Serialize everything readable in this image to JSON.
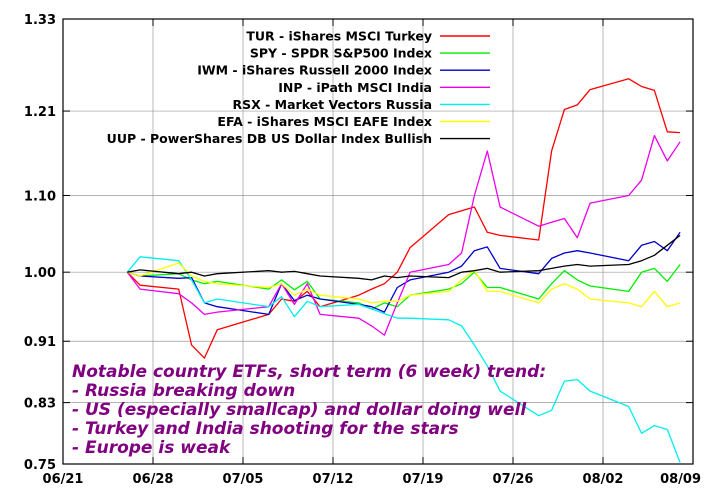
{
  "chart_data": {
    "type": "line",
    "x_dates": [
      "06/26",
      "06/27",
      "06/30",
      "07/01",
      "07/02",
      "07/03",
      "07/07",
      "07/08",
      "07/09",
      "07/10",
      "07/11",
      "07/14",
      "07/15",
      "07/16",
      "07/17",
      "07/18",
      "07/21",
      "07/22",
      "07/23",
      "07/24",
      "07/25",
      "07/28",
      "07/29",
      "07/30",
      "07/31",
      "08/01",
      "08/04",
      "08/05",
      "08/06",
      "08/07",
      "08/08"
    ],
    "x_ticks": [
      "06/21",
      "06/28",
      "07/05",
      "07/12",
      "07/19",
      "07/26",
      "08/02",
      "08/09"
    ],
    "y_ticks": [
      "0.75",
      "0.83",
      "0.91",
      "1.00",
      "1.10",
      "1.21",
      "1.33"
    ],
    "ylim": [
      0.75,
      1.33
    ],
    "grid": true,
    "legend_position": "top-right",
    "series": [
      {
        "name": "TUR - iShares MSCI Turkey",
        "color": "#ff0000",
        "values": [
          1.0,
          0.983,
          0.978,
          0.905,
          0.888,
          0.925,
          0.945,
          0.965,
          0.962,
          0.975,
          0.955,
          0.97,
          0.978,
          0.985,
          1.0,
          1.032,
          1.075,
          1.08,
          1.085,
          1.052,
          1.048,
          1.042,
          1.158,
          1.212,
          1.218,
          1.238,
          1.252,
          1.242,
          1.237,
          1.183,
          1.182
        ]
      },
      {
        "name": "SPY - SPDR S&P500 Index",
        "color": "#00ee00",
        "values": [
          1.0,
          0.995,
          0.998,
          0.99,
          0.985,
          0.988,
          0.978,
          0.99,
          0.977,
          0.988,
          0.965,
          0.96,
          0.952,
          0.96,
          0.955,
          0.97,
          0.978,
          0.985,
          1.0,
          0.98,
          0.98,
          0.965,
          0.985,
          1.002,
          0.99,
          0.982,
          0.975,
          1.0,
          1.005,
          0.988,
          1.01
        ]
      },
      {
        "name": "IWM - iShares Russell 2000 Index",
        "color": "#0000cc",
        "values": [
          1.0,
          0.995,
          0.992,
          0.993,
          0.96,
          0.955,
          0.945,
          0.985,
          0.963,
          0.97,
          0.965,
          0.958,
          0.955,
          0.948,
          0.98,
          0.99,
          1.0,
          1.008,
          1.028,
          1.033,
          1.005,
          0.998,
          1.018,
          1.025,
          1.028,
          1.025,
          1.015,
          1.035,
          1.04,
          1.028,
          1.052
        ]
      },
      {
        "name": "INP - iPath MSCI India",
        "color": "#ee00ee",
        "values": [
          1.0,
          0.978,
          0.972,
          0.96,
          0.945,
          0.948,
          0.955,
          0.985,
          0.958,
          0.985,
          0.945,
          0.94,
          0.93,
          0.918,
          0.96,
          1.0,
          1.01,
          1.025,
          1.1,
          1.158,
          1.085,
          1.06,
          1.065,
          1.07,
          1.045,
          1.09,
          1.1,
          1.12,
          1.178,
          1.145,
          1.17
        ]
      },
      {
        "name": "RSX - Market Vectors Russia",
        "color": "#00eeee",
        "values": [
          1.0,
          1.02,
          1.015,
          0.99,
          0.96,
          0.965,
          0.955,
          0.968,
          0.942,
          0.962,
          0.955,
          0.958,
          0.952,
          0.946,
          0.94,
          0.94,
          0.938,
          0.93,
          0.905,
          0.878,
          0.845,
          0.813,
          0.82,
          0.858,
          0.86,
          0.845,
          0.825,
          0.79,
          0.8,
          0.795,
          0.752
        ]
      },
      {
        "name": "EFA - iShares MSCI EAFE Index",
        "color": "#ffff00",
        "values": [
          1.0,
          0.995,
          1.012,
          0.995,
          0.988,
          0.985,
          0.98,
          0.985,
          0.97,
          0.978,
          0.97,
          0.965,
          0.96,
          0.962,
          0.962,
          0.97,
          0.975,
          0.99,
          1.002,
          0.975,
          0.975,
          0.96,
          0.978,
          0.985,
          0.978,
          0.965,
          0.96,
          0.955,
          0.975,
          0.955,
          0.96
        ]
      },
      {
        "name": "UUP - PowerShares DB US Dollar Index Bullish",
        "color": "#000000",
        "values": [
          1.0,
          1.003,
          0.998,
          1.0,
          0.995,
          0.998,
          1.002,
          1.0,
          1.001,
          0.998,
          0.995,
          0.992,
          0.99,
          0.995,
          0.993,
          0.995,
          0.993,
          1.0,
          1.002,
          1.005,
          1.0,
          1.002,
          1.005,
          1.008,
          1.01,
          1.008,
          1.01,
          1.015,
          1.022,
          1.035,
          1.048
        ]
      }
    ]
  },
  "annotation": {
    "title": "Notable country ETFs, short term (6 week) trend:",
    "bullets": [
      "- Russia breaking down",
      "- US (especially smallcap) and dollar doing well",
      "- Turkey and India shooting for the stars",
      "- Europe is weak"
    ]
  }
}
